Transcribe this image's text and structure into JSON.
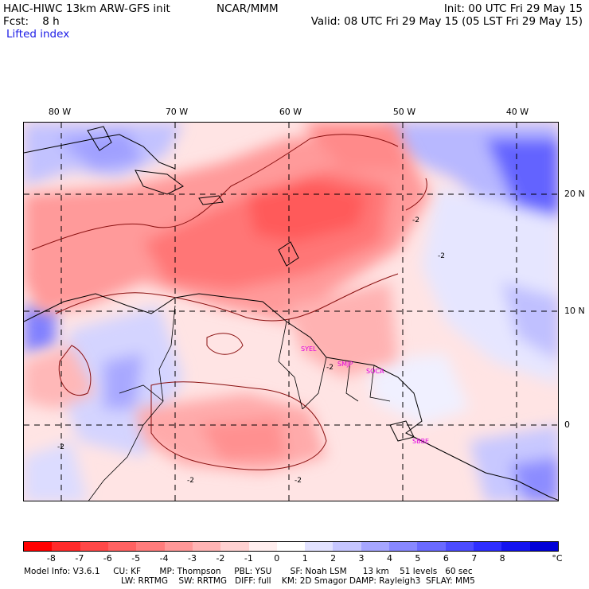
{
  "header": {
    "model": "HAIC-HIWC 13km ARW-GFS init",
    "org": "NCAR/MMM",
    "init": "Init: 00 UTC Fri 29 May 15",
    "fcst": "Fcst:    8 h",
    "valid": "Valid: 08 UTC Fri 29 May 15 (05 LST Fri 29 May 15)",
    "field": "Lifted index"
  },
  "map": {
    "lon_labels": [
      "80 W",
      "70 W",
      "60 W",
      "50 W",
      "40 W"
    ],
    "lat_labels": [
      "20 N",
      "10 N",
      "0"
    ],
    "contour_labels": [
      "-2",
      "-2",
      "-2",
      "-2",
      "-2",
      "-2"
    ],
    "stations": [
      "SYEL",
      "SMJP",
      "SOCA",
      "SBBE"
    ]
  },
  "colorbar": {
    "colors": [
      "#ff0000",
      "#ff2a2a",
      "#ff4848",
      "#ff6262",
      "#ff7c7c",
      "#ff9898",
      "#ffb4b4",
      "#ffd2d2",
      "#ffeeee",
      "#ffffff",
      "#e2e2ff",
      "#c6c6ff",
      "#a6a6ff",
      "#8888ff",
      "#6a6aff",
      "#4c4cff",
      "#2e2eff",
      "#1414f0",
      "#0000d8"
    ],
    "ticks": [
      "-8",
      "-7",
      "-6",
      "-5",
      "-4",
      "-3",
      "-2",
      "-1",
      "0",
      "1",
      "2",
      "3",
      "4",
      "5",
      "6",
      "7",
      "8"
    ],
    "unit": "°C"
  },
  "footer": {
    "line1": "Model Info: V3.6.1     CU: KF       MP: Thompson     PBL: YSU       SF: Noah LSM      13 km    51 levels   60 sec",
    "line2": "LW: RRTMG    SW: RRTMG   DIFF: full    KM: 2D Smagor DAMP: Rayleigh3  SFLAY: MM5"
  }
}
